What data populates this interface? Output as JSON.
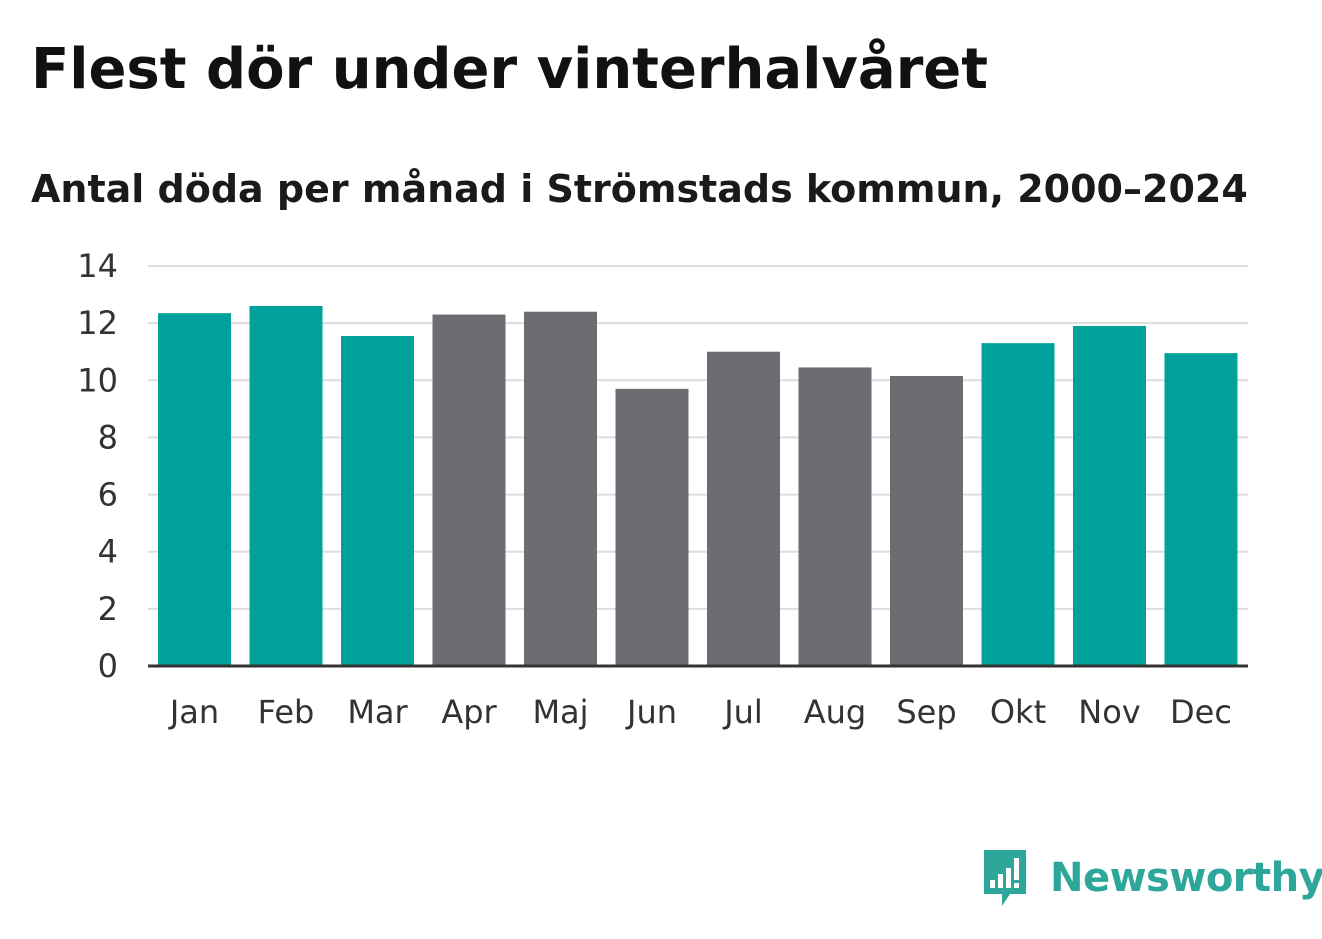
{
  "chart_data": {
    "type": "bar",
    "title": "Flest dör under vinterhalvåret",
    "subtitle": "Antal döda per månad i Strömstads kommun, 2000–2024",
    "categories": [
      "Jan",
      "Feb",
      "Mar",
      "Apr",
      "Maj",
      "Jun",
      "Jul",
      "Aug",
      "Sep",
      "Okt",
      "Nov",
      "Dec"
    ],
    "values": [
      12.35,
      12.6,
      11.55,
      12.3,
      12.4,
      9.7,
      11.0,
      10.45,
      10.15,
      11.3,
      11.9,
      10.95
    ],
    "highlight": [
      true,
      true,
      true,
      false,
      false,
      false,
      false,
      false,
      false,
      true,
      true,
      true
    ],
    "colors": {
      "highlight": "#00a19a",
      "default": "#6d6c72",
      "grid": "#dddddd",
      "axis": "#333333"
    },
    "ylim": [
      0,
      14
    ],
    "yticks": [
      0,
      2,
      4,
      6,
      8,
      10,
      12,
      14
    ],
    "xlabel": "",
    "ylabel": "",
    "grid": true
  },
  "brand": {
    "name": "Newsworthy",
    "logo_icon": "bar-chart-speech-bubble-icon",
    "color": "#2ea79b"
  }
}
